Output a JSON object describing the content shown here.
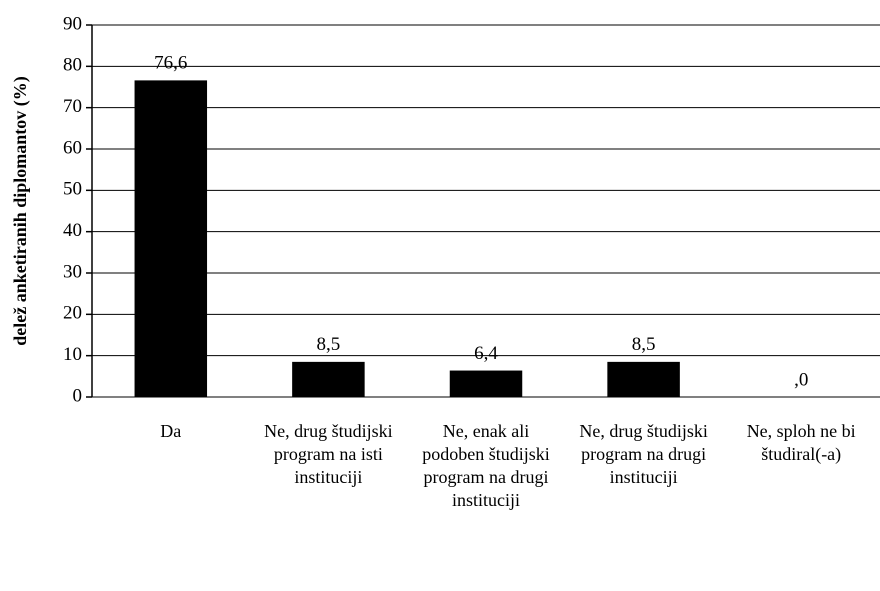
{
  "chart_data": {
    "type": "bar",
    "y_label": "delež anketiranih diplomantov (%)",
    "categories": [
      "Da",
      "Ne, drug študijski program na isti instituciji",
      "Ne, enak ali podoben študijski program na drugi instituciji",
      "Ne, drug študijski program na drugi instituciji",
      "Ne, sploh ne bi študiral(-a)"
    ],
    "values": [
      76.6,
      8.5,
      6.4,
      8.5,
      0
    ],
    "value_labels": [
      "76,6",
      "8,5",
      "6,4",
      "8,5",
      ",0"
    ],
    "color": "#000000",
    "ylim": [
      0,
      90
    ],
    "yticks": [
      0,
      10,
      20,
      30,
      40,
      50,
      60,
      70,
      80,
      90
    ],
    "grid": true
  }
}
